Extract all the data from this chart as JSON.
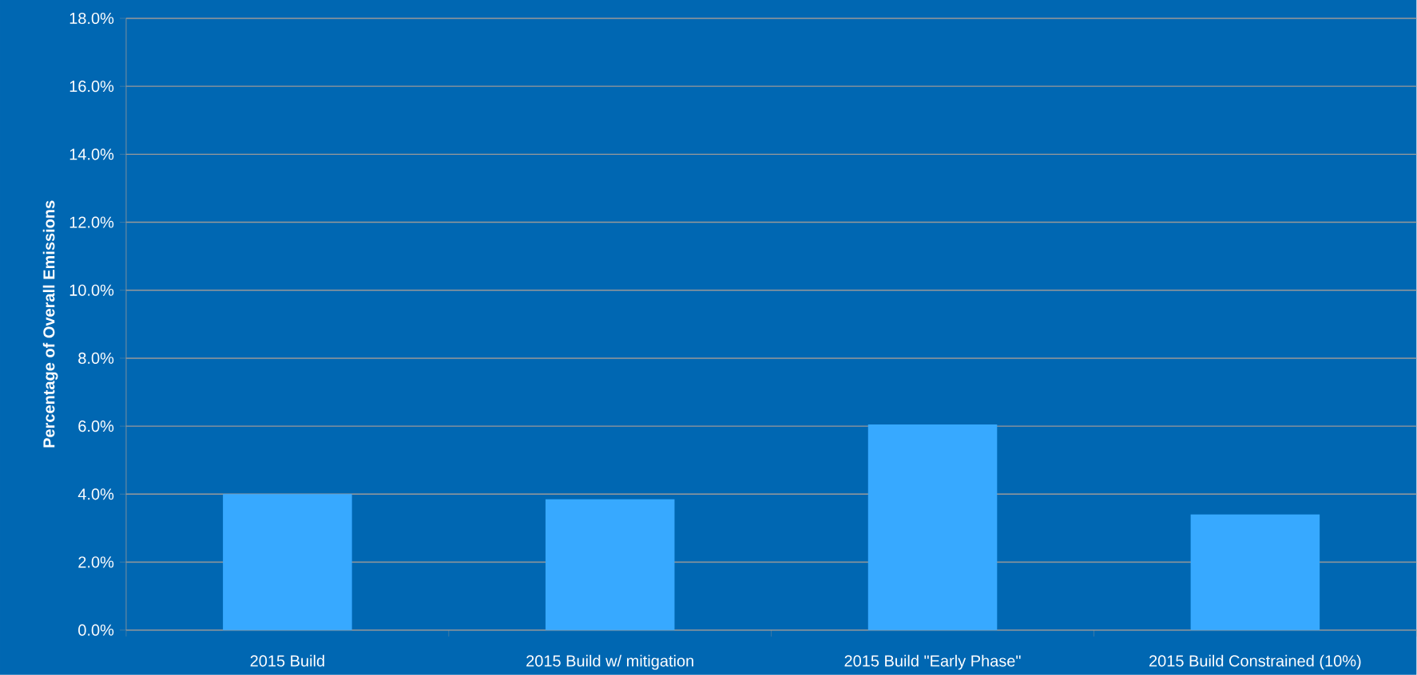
{
  "chart_data": {
    "type": "bar",
    "ylabel": "Percentage of Overall Emissions",
    "categories": [
      "2015 Build",
      "2015 Build w/ mitigation",
      "2015 Build \"Early Phase\"",
      "2015 Build Constrained (10%)"
    ],
    "values": [
      4.0,
      3.85,
      6.05,
      3.4
    ],
    "color": "#37a9ff",
    "ylim": [
      0,
      18
    ],
    "yticks": [
      {
        "value": 0,
        "label": "0.0%"
      },
      {
        "value": 2,
        "label": "2.0%"
      },
      {
        "value": 4,
        "label": "4.0%"
      },
      {
        "value": 6,
        "label": "6.0%"
      },
      {
        "value": 8,
        "label": "8.0%"
      },
      {
        "value": 10,
        "label": "10.0%"
      },
      {
        "value": 12,
        "label": "12.0%"
      },
      {
        "value": 14,
        "label": "14.0%"
      },
      {
        "value": 16,
        "label": "16.0%"
      },
      {
        "value": 18,
        "label": "18.0%"
      }
    ],
    "grid": "y"
  }
}
